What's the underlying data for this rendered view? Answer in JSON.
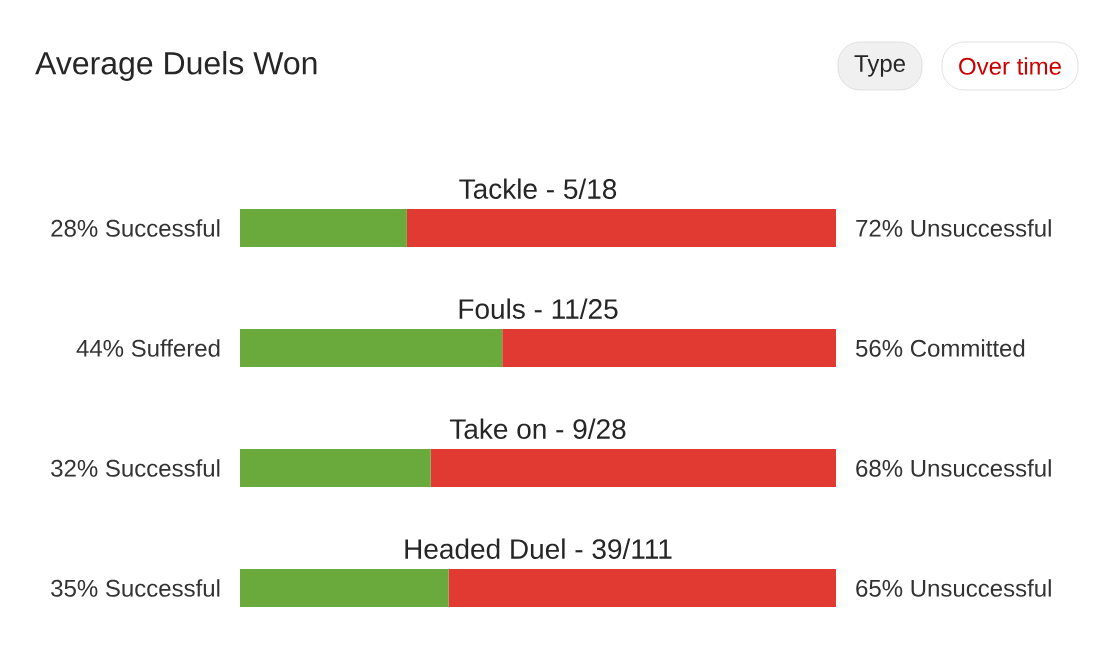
{
  "chart_data": {
    "type": "bar",
    "orientation": "horizontal",
    "stacked": true,
    "title": "Average Duels Won",
    "annotations": [
      "Type",
      "Over time"
    ],
    "categories": [
      "Tackle - 5/18",
      "Fouls - 11/25",
      "Take on - 9/28",
      "Headed Duel - 39/111"
    ],
    "series": [
      {
        "color": "#6aaa3c",
        "values": [
          28,
          44,
          32,
          35
        ],
        "value_labels": [
          "28% Successful",
          "44% Suffered",
          "32% Successful",
          "35% Successful"
        ]
      },
      {
        "color": "#e03a33",
        "values": [
          72,
          56,
          68,
          65
        ],
        "value_labels": [
          "72% Unsuccessful",
          "56% Committed",
          "68% Unsuccessful",
          "65% Unsuccessful"
        ]
      }
    ],
    "xlim": [
      0,
      100
    ],
    "tick_labels": false
  }
}
